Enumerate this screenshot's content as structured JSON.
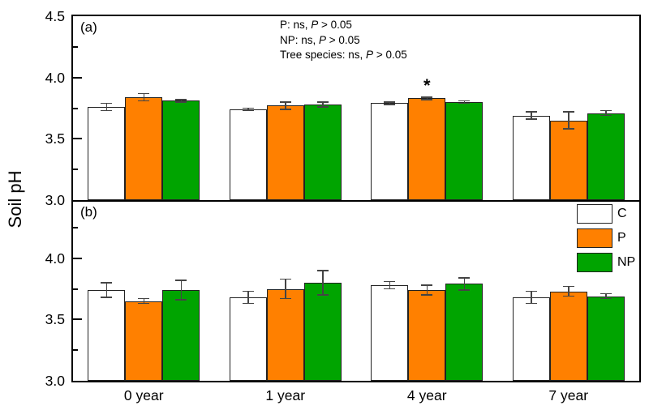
{
  "figure": {
    "ylabel": "Soil pH",
    "xlabels": [
      "0 year",
      "1 year",
      "4 year",
      "7 year"
    ]
  },
  "chart_data": {
    "type": "bar",
    "categories": [
      "0 year",
      "1 year",
      "4 year",
      "7 year"
    ],
    "ylabel": "Soil pH",
    "grid": false,
    "legend_position": "top-right-of-panel-b",
    "panels": [
      {
        "label": "(a)",
        "ylim": [
          3.0,
          4.5
        ],
        "ytick_labels": [
          "4.5",
          "4.0",
          "3.5",
          "3.0"
        ],
        "ytick_values": [
          4.5,
          4.0,
          3.5,
          3.0
        ],
        "minor_tick_values": [
          4.25,
          3.75,
          3.25
        ],
        "series": [
          {
            "name": "C",
            "fill": "#ffffff",
            "values": [
              3.76,
              3.74,
              3.79,
              3.69
            ],
            "errors": [
              0.03,
              0.01,
              0.01,
              0.03
            ]
          },
          {
            "name": "P",
            "fill": "#ff8000",
            "values": [
              3.84,
              3.77,
              3.83,
              3.65
            ],
            "errors": [
              0.03,
              0.03,
              0.01,
              0.07
            ]
          },
          {
            "name": "NP",
            "fill": "#00a400",
            "values": [
              3.81,
              3.78,
              3.8,
              3.71
            ],
            "errors": [
              0.01,
              0.02,
              0.01,
              0.02
            ]
          }
        ],
        "significance": {
          "series": "P",
          "category": "4 year",
          "symbol": "*"
        }
      },
      {
        "label": "(b)",
        "ylim": [
          3.0,
          4.47
        ],
        "ytick_labels": [
          "4.0",
          "3.5",
          "3.0"
        ],
        "ytick_values": [
          4.0,
          3.5,
          3.0
        ],
        "minor_tick_values": [
          4.25,
          3.75,
          3.25
        ],
        "series": [
          {
            "name": "C",
            "fill": "#ffffff",
            "values": [
              3.74,
              3.68,
              3.78,
              3.68
            ],
            "errors": [
              0.06,
              0.05,
              0.03,
              0.05
            ]
          },
          {
            "name": "P",
            "fill": "#ff8000",
            "values": [
              3.65,
              3.75,
              3.74,
              3.73
            ],
            "errors": [
              0.02,
              0.08,
              0.04,
              0.04
            ]
          },
          {
            "name": "NP",
            "fill": "#00a400",
            "values": [
              3.74,
              3.8,
              3.79,
              3.69
            ],
            "errors": [
              0.08,
              0.1,
              0.05,
              0.02
            ]
          }
        ]
      }
    ],
    "legend": {
      "entries": [
        {
          "label": "C",
          "color": "#ffffff"
        },
        {
          "label": "P",
          "color": "#ff8000"
        },
        {
          "label": "NP",
          "color": "#00a400"
        }
      ]
    },
    "annotation": {
      "lines": [
        {
          "pre": "P: ns, ",
          "italic": "P",
          "post": " > 0.05"
        },
        {
          "pre": "NP: ns, ",
          "italic": "P",
          "post": " > 0.05"
        },
        {
          "pre": "Tree species: ns, ",
          "italic": "P",
          "post": " > 0.05"
        }
      ]
    }
  }
}
